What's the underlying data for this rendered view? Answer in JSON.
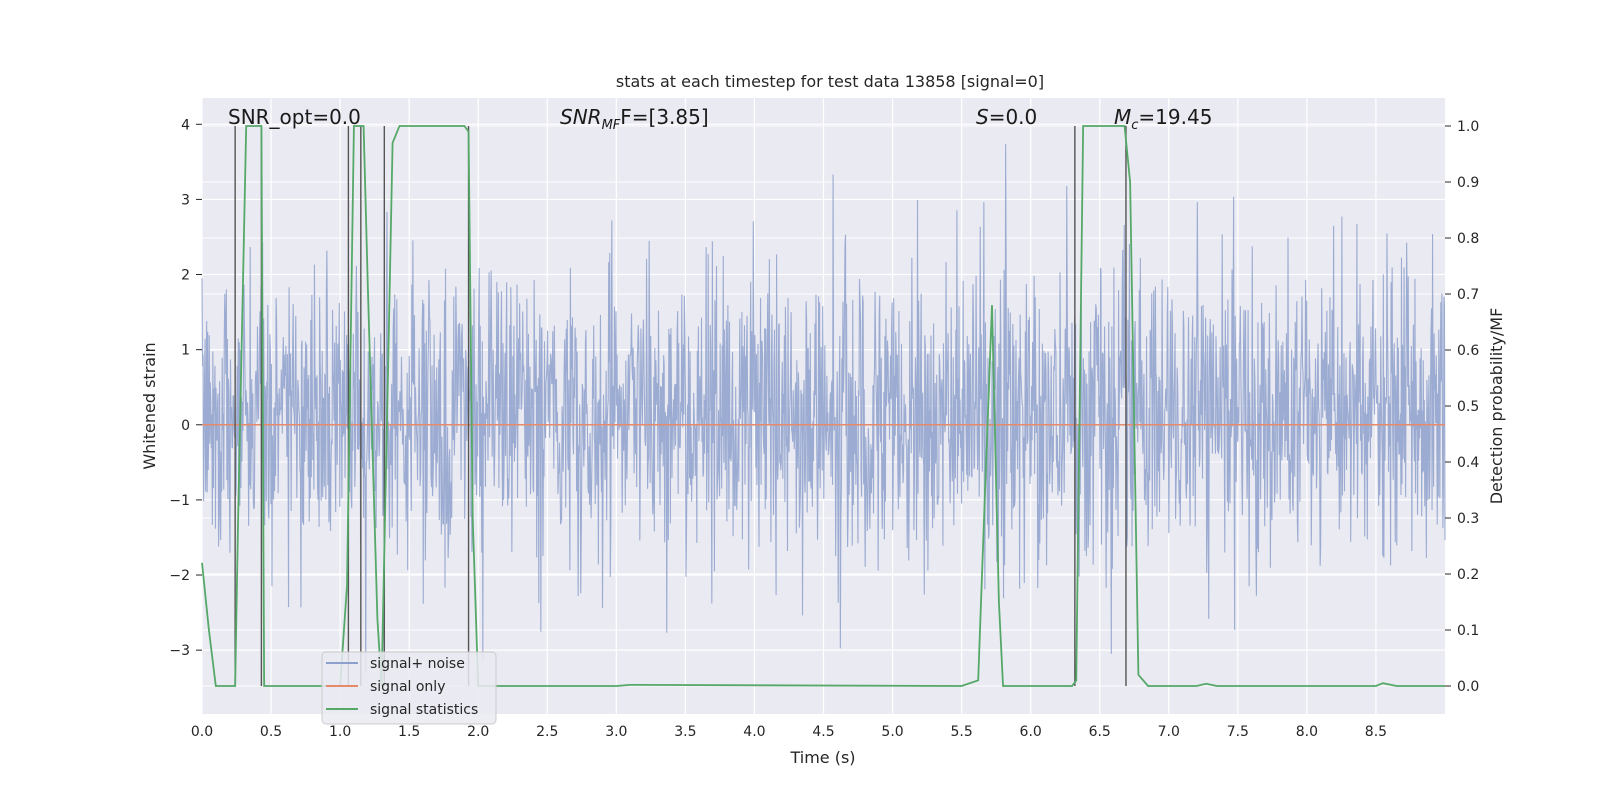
{
  "chart_data": {
    "type": "line",
    "title": "stats at each timestep for test data 13858 [signal=0]",
    "xlabel": "Time (s)",
    "ylabel": "Whitened strain",
    "y2label": "Detection probability/MF",
    "xlim": [
      0,
      9.0
    ],
    "ylim": [
      -3.85,
      4.35
    ],
    "y2lim": [
      -0.05,
      1.05
    ],
    "xticks": [
      0.0,
      0.5,
      1.0,
      1.5,
      2.0,
      2.5,
      3.0,
      3.5,
      4.0,
      4.5,
      5.0,
      5.5,
      6.0,
      6.5,
      7.0,
      7.5,
      8.0,
      8.5
    ],
    "yticks": [
      -3,
      -2,
      -1,
      0,
      1,
      2,
      3,
      4
    ],
    "y2ticks": [
      0.0,
      0.1,
      0.2,
      0.3,
      0.4,
      0.5,
      0.6,
      0.7,
      0.8,
      0.9,
      1.0
    ],
    "grid": true,
    "legend_position": "lower-left",
    "annotations": {
      "snr_opt": "SNR_opt=0.0",
      "snr_mf_main": "SNR",
      "snr_mf_sub": "MF",
      "snr_mf_rest": "F=[3.85]",
      "s_main": "S",
      "s_rest": "=0.0",
      "mc_main": "M",
      "mc_sub": "c",
      "mc_rest": "=19.45"
    },
    "vertical_lines": [
      0.24,
      0.43,
      1.06,
      1.15,
      1.32,
      1.93,
      6.32,
      6.69
    ],
    "series": [
      {
        "name": "signal+ noise",
        "color": "#8da0cb",
        "description_kind": "noise",
        "noise_seed": 13858,
        "typical_range": [
          -1.3,
          1.6
        ],
        "peak_max": 4.0,
        "peak_min": -3.5
      },
      {
        "name": "signal only",
        "color": "#e58a6a",
        "constant_value": 0.0
      },
      {
        "name": "signal statistics",
        "color": "#55a868",
        "axis": "right",
        "x": [
          0.0,
          0.05,
          0.1,
          0.24,
          0.26,
          0.32,
          0.38,
          0.43,
          0.45,
          0.5,
          1.0,
          1.05,
          1.1,
          1.13,
          1.17,
          1.2,
          1.27,
          1.3,
          1.35,
          1.38,
          1.43,
          1.5,
          1.9,
          1.93,
          1.96,
          2.0,
          3.0,
          3.1,
          5.5,
          5.62,
          5.67,
          5.72,
          5.77,
          5.8,
          6.3,
          6.33,
          6.38,
          6.45,
          6.68,
          6.72,
          6.78,
          6.85,
          7.2,
          7.27,
          7.35,
          8.5,
          8.55,
          8.65,
          9.0
        ],
        "y": [
          0.22,
          0.1,
          0.0,
          0.0,
          0.28,
          1.0,
          1.0,
          1.0,
          0.0,
          0.0,
          0.0,
          0.18,
          1.0,
          1.0,
          1.0,
          0.72,
          0.12,
          0.0,
          0.6,
          0.97,
          1.0,
          1.0,
          1.0,
          0.99,
          0.3,
          0.0,
          0.0,
          0.002,
          0.0,
          0.01,
          0.35,
          0.68,
          0.15,
          0.0,
          0.0,
          0.01,
          1.0,
          1.0,
          1.0,
          0.9,
          0.02,
          0.0,
          0.0,
          0.004,
          0.0,
          0.0,
          0.005,
          0.0,
          0.0
        ]
      }
    ]
  }
}
